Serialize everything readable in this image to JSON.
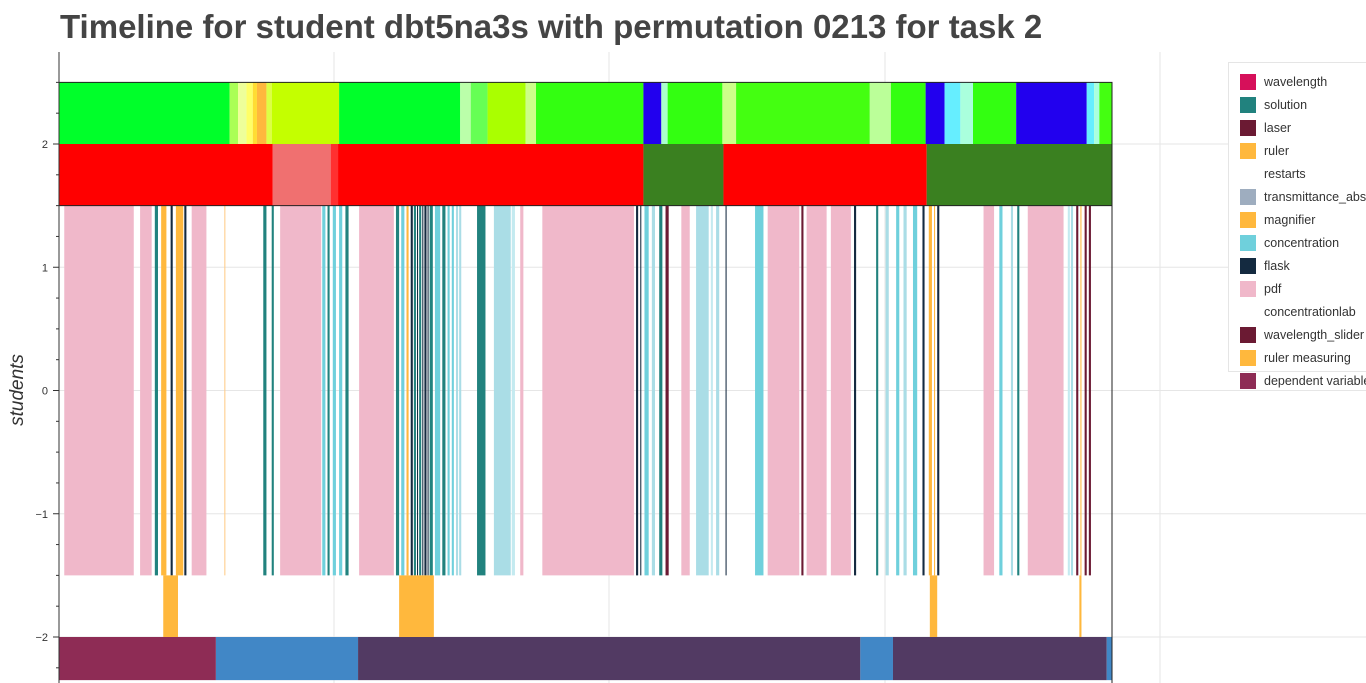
{
  "chart_data": {
    "type": "timeline",
    "title": "Timeline for student dbt5na3s with permutation 0213 for task 2",
    "ylabel": "students",
    "yticks": [
      "2",
      "1",
      "0",
      "−1",
      "−2"
    ],
    "ytick_values": [
      2,
      1,
      0,
      -1,
      -2
    ],
    "ylim": [
      -2.35,
      2.75
    ],
    "xlim": [
      0,
      1000
    ],
    "legend_placement": "right",
    "grid": true,
    "legend": [
      {
        "label": "wavelength",
        "color": "#d6105a"
      },
      {
        "label": "solution",
        "color": "#21827e"
      },
      {
        "label": "laser",
        "color": "#6b1a33"
      },
      {
        "label": "ruler",
        "color": "#ffb83d"
      },
      {
        "label": "restarts",
        "color": "#ffffff"
      },
      {
        "label": "transmittance_abs",
        "color": "#9eadbf"
      },
      {
        "label": "magnifier",
        "color": "#ffb83d"
      },
      {
        "label": "concentration",
        "color": "#6fd0dc"
      },
      {
        "label": "flask",
        "color": "#142a40"
      },
      {
        "label": "pdf",
        "color": "#f0b8ca"
      },
      {
        "label": "concentrationlab",
        "color": "#ffffff"
      },
      {
        "label": "wavelength_slider",
        "color": "#6b1a33"
      },
      {
        "label": "ruler measuring",
        "color": "#ffb83d"
      },
      {
        "label": "dependent variable",
        "color": "#8e2c55"
      }
    ],
    "tracks": {
      "top": {
        "y": [
          2.0,
          2.5
        ],
        "segments": [
          {
            "x0": 0,
            "x1": 162,
            "color": "#00ff2a"
          },
          {
            "x0": 162,
            "x1": 170,
            "color": "#aaff55"
          },
          {
            "x0": 170,
            "x1": 178,
            "color": "#eeff99"
          },
          {
            "x0": 178,
            "x1": 184,
            "color": "#ffff66"
          },
          {
            "x0": 184,
            "x1": 188,
            "color": "#ffdd33"
          },
          {
            "x0": 188,
            "x1": 197,
            "color": "#ffb83d"
          },
          {
            "x0": 197,
            "x1": 202,
            "color": "#ddff44"
          },
          {
            "x0": 202,
            "x1": 266,
            "color": "#c4ff00"
          },
          {
            "x0": 266,
            "x1": 381,
            "color": "#00ff2a"
          },
          {
            "x0": 381,
            "x1": 391,
            "color": "#bbffaa"
          },
          {
            "x0": 391,
            "x1": 407,
            "color": "#66ff55"
          },
          {
            "x0": 407,
            "x1": 443,
            "color": "#aaff00"
          },
          {
            "x0": 443,
            "x1": 453,
            "color": "#ccff88"
          },
          {
            "x0": 453,
            "x1": 555,
            "color": "#33ff11"
          },
          {
            "x0": 555,
            "x1": 572,
            "color": "#2200ee"
          },
          {
            "x0": 572,
            "x1": 578,
            "color": "#aaffcc"
          },
          {
            "x0": 578,
            "x1": 630,
            "color": "#33ff11"
          },
          {
            "x0": 630,
            "x1": 643,
            "color": "#ccff88"
          },
          {
            "x0": 643,
            "x1": 770,
            "color": "#44ff11"
          },
          {
            "x0": 770,
            "x1": 790,
            "color": "#bbff99"
          },
          {
            "x0": 790,
            "x1": 823,
            "color": "#33ff11"
          },
          {
            "x0": 823,
            "x1": 841,
            "color": "#2200ee"
          },
          {
            "x0": 841,
            "x1": 856,
            "color": "#66eeff"
          },
          {
            "x0": 856,
            "x1": 868,
            "color": "#aaffdd"
          },
          {
            "x0": 868,
            "x1": 909,
            "color": "#33ff11"
          },
          {
            "x0": 909,
            "x1": 976,
            "color": "#2200ee"
          },
          {
            "x0": 976,
            "x1": 983,
            "color": "#66eeff"
          },
          {
            "x0": 983,
            "x1": 988,
            "color": "#aaffdd"
          },
          {
            "x0": 988,
            "x1": 1000,
            "color": "#44ff11"
          }
        ]
      },
      "second": {
        "y": [
          1.5,
          2.0
        ],
        "segments": [
          {
            "x0": 0,
            "x1": 203,
            "color": "#ff0000"
          },
          {
            "x0": 203,
            "x1": 258,
            "color": "#f07070"
          },
          {
            "x0": 258,
            "x1": 265,
            "color": "#ff3030"
          },
          {
            "x0": 265,
            "x1": 555,
            "color": "#ff0000"
          },
          {
            "x0": 555,
            "x1": 631,
            "color": "#3a8020"
          },
          {
            "x0": 631,
            "x1": 824,
            "color": "#ff0000"
          },
          {
            "x0": 824,
            "x1": 1000,
            "color": "#3a8020"
          }
        ]
      },
      "middle": {
        "y": [
          -1.5,
          1.5
        ],
        "segments": [
          {
            "x0": 5,
            "x1": 71,
            "color": "#f0b8ca"
          },
          {
            "x0": 77,
            "x1": 88,
            "color": "#f0b8ca"
          },
          {
            "x0": 91,
            "x1": 94,
            "color": "#21827e"
          },
          {
            "x0": 97,
            "x1": 102,
            "color": "#ffb83d"
          },
          {
            "x0": 106,
            "x1": 108,
            "color": "#142a40"
          },
          {
            "x0": 111,
            "x1": 118,
            "color": "#ffb83d"
          },
          {
            "x0": 119,
            "x1": 121,
            "color": "#142a40"
          },
          {
            "x0": 126,
            "x1": 140,
            "color": "#f0b8ca"
          },
          {
            "x0": 157,
            "x1": 158,
            "color": "#ffcc88"
          },
          {
            "x0": 194,
            "x1": 197,
            "color": "#21827e"
          },
          {
            "x0": 202,
            "x1": 204,
            "color": "#21827e"
          },
          {
            "x0": 210,
            "x1": 249,
            "color": "#f0b8ca"
          },
          {
            "x0": 250,
            "x1": 253,
            "color": "#6fd0dc"
          },
          {
            "x0": 255,
            "x1": 257,
            "color": "#21827e"
          },
          {
            "x0": 260,
            "x1": 263,
            "color": "#6fd0dc"
          },
          {
            "x0": 266,
            "x1": 269,
            "color": "#6fd0dc"
          },
          {
            "x0": 272,
            "x1": 275,
            "color": "#21827e"
          },
          {
            "x0": 285,
            "x1": 318,
            "color": "#f0b8ca"
          },
          {
            "x0": 320,
            "x1": 323,
            "color": "#21827e"
          },
          {
            "x0": 325,
            "x1": 328,
            "color": "#6fd0dc"
          },
          {
            "x0": 330,
            "x1": 332,
            "color": "#ffb83d"
          },
          {
            "x0": 334,
            "x1": 336,
            "color": "#142a40"
          },
          {
            "x0": 337,
            "x1": 339,
            "color": "#21827e"
          },
          {
            "x0": 340,
            "x1": 341,
            "color": "#142a40"
          },
          {
            "x0": 342,
            "x1": 344,
            "color": "#21827e"
          },
          {
            "x0": 345,
            "x1": 346,
            "color": "#142a40"
          },
          {
            "x0": 347,
            "x1": 349,
            "color": "#142a40"
          },
          {
            "x0": 350,
            "x1": 351,
            "color": "#142a40"
          },
          {
            "x0": 352,
            "x1": 355,
            "color": "#21827e"
          },
          {
            "x0": 357,
            "x1": 362,
            "color": "#6fd0dc"
          },
          {
            "x0": 364,
            "x1": 367,
            "color": "#21827e"
          },
          {
            "x0": 369,
            "x1": 371,
            "color": "#6fd0dc"
          },
          {
            "x0": 373,
            "x1": 375,
            "color": "#6fd0dc"
          },
          {
            "x0": 377,
            "x1": 379,
            "color": "#aadde6"
          },
          {
            "x0": 380,
            "x1": 382,
            "color": "#aadde6"
          },
          {
            "x0": 397,
            "x1": 405,
            "color": "#21827e"
          },
          {
            "x0": 413,
            "x1": 429,
            "color": "#aadde6"
          },
          {
            "x0": 430,
            "x1": 433,
            "color": "#c4eaf0"
          },
          {
            "x0": 438,
            "x1": 441,
            "color": "#f0b8ca"
          },
          {
            "x0": 459,
            "x1": 546,
            "color": "#f0b8ca"
          },
          {
            "x0": 548,
            "x1": 550,
            "color": "#142a40"
          },
          {
            "x0": 552,
            "x1": 553,
            "color": "#142a40"
          },
          {
            "x0": 556,
            "x1": 560,
            "color": "#6fd0dc"
          },
          {
            "x0": 563,
            "x1": 566,
            "color": "#aadde6"
          },
          {
            "x0": 570,
            "x1": 573,
            "color": "#21827e"
          },
          {
            "x0": 576,
            "x1": 579,
            "color": "#6b1a33"
          },
          {
            "x0": 591,
            "x1": 599,
            "color": "#f0b8ca"
          },
          {
            "x0": 605,
            "x1": 617,
            "color": "#aadde6"
          },
          {
            "x0": 619,
            "x1": 621,
            "color": "#c4eaf0"
          },
          {
            "x0": 624,
            "x1": 627,
            "color": "#aadde6"
          },
          {
            "x0": 633,
            "x1": 634,
            "color": "#142a40"
          },
          {
            "x0": 661,
            "x1": 669,
            "color": "#6fd0dc"
          },
          {
            "x0": 673,
            "x1": 703,
            "color": "#f0b8ca"
          },
          {
            "x0": 705,
            "x1": 707,
            "color": "#6b1a33"
          },
          {
            "x0": 710,
            "x1": 729,
            "color": "#f0b8ca"
          },
          {
            "x0": 733,
            "x1": 752,
            "color": "#f0b8ca"
          },
          {
            "x0": 755,
            "x1": 757,
            "color": "#142a40"
          },
          {
            "x0": 776,
            "x1": 778,
            "color": "#21827e"
          },
          {
            "x0": 785,
            "x1": 788,
            "color": "#aadde6"
          },
          {
            "x0": 795,
            "x1": 798,
            "color": "#6fd0dc"
          },
          {
            "x0": 802,
            "x1": 805,
            "color": "#aadde6"
          },
          {
            "x0": 811,
            "x1": 815,
            "color": "#6fd0dc"
          },
          {
            "x0": 820,
            "x1": 822,
            "color": "#142a40"
          },
          {
            "x0": 826,
            "x1": 829,
            "color": "#ffb83d"
          },
          {
            "x0": 831,
            "x1": 832,
            "color": "#ffb83d"
          },
          {
            "x0": 834,
            "x1": 836,
            "color": "#142a40"
          },
          {
            "x0": 878,
            "x1": 888,
            "color": "#f0b8ca"
          },
          {
            "x0": 893,
            "x1": 896,
            "color": "#6fd0dc"
          },
          {
            "x0": 904,
            "x1": 906,
            "color": "#aadde6"
          },
          {
            "x0": 910,
            "x1": 912,
            "color": "#21827e"
          },
          {
            "x0": 920,
            "x1": 954,
            "color": "#f0b8ca"
          },
          {
            "x0": 958,
            "x1": 960,
            "color": "#c4eaf0"
          },
          {
            "x0": 961,
            "x1": 963,
            "color": "#aadde6"
          },
          {
            "x0": 966,
            "x1": 968,
            "color": "#6b1a33"
          },
          {
            "x0": 970,
            "x1": 971,
            "color": "#ffb83d"
          },
          {
            "x0": 974,
            "x1": 976,
            "color": "#6b1a33"
          },
          {
            "x0": 978,
            "x1": 980,
            "color": "#6b1a33"
          }
        ]
      },
      "ruler": {
        "y": [
          -2.0,
          -1.5
        ],
        "segments": [
          {
            "x0": 99,
            "x1": 113,
            "color": "#ffb83d"
          },
          {
            "x0": 323,
            "x1": 356,
            "color": "#ffb83d"
          },
          {
            "x0": 827,
            "x1": 834,
            "color": "#ffb83d"
          },
          {
            "x0": 969,
            "x1": 971,
            "color": "#ffb83d"
          }
        ]
      },
      "bottom": {
        "y": [
          -2.35,
          -2.0
        ],
        "segments": [
          {
            "x0": 0,
            "x1": 149,
            "color": "#8e2c55"
          },
          {
            "x0": 149,
            "x1": 284,
            "color": "#4187c6"
          },
          {
            "x0": 284,
            "x1": 761,
            "color": "#523a63"
          },
          {
            "x0": 761,
            "x1": 792,
            "color": "#4187c6"
          },
          {
            "x0": 792,
            "x1": 995,
            "color": "#523a63"
          },
          {
            "x0": 995,
            "x1": 1000,
            "color": "#4187c6"
          }
        ]
      }
    }
  }
}
